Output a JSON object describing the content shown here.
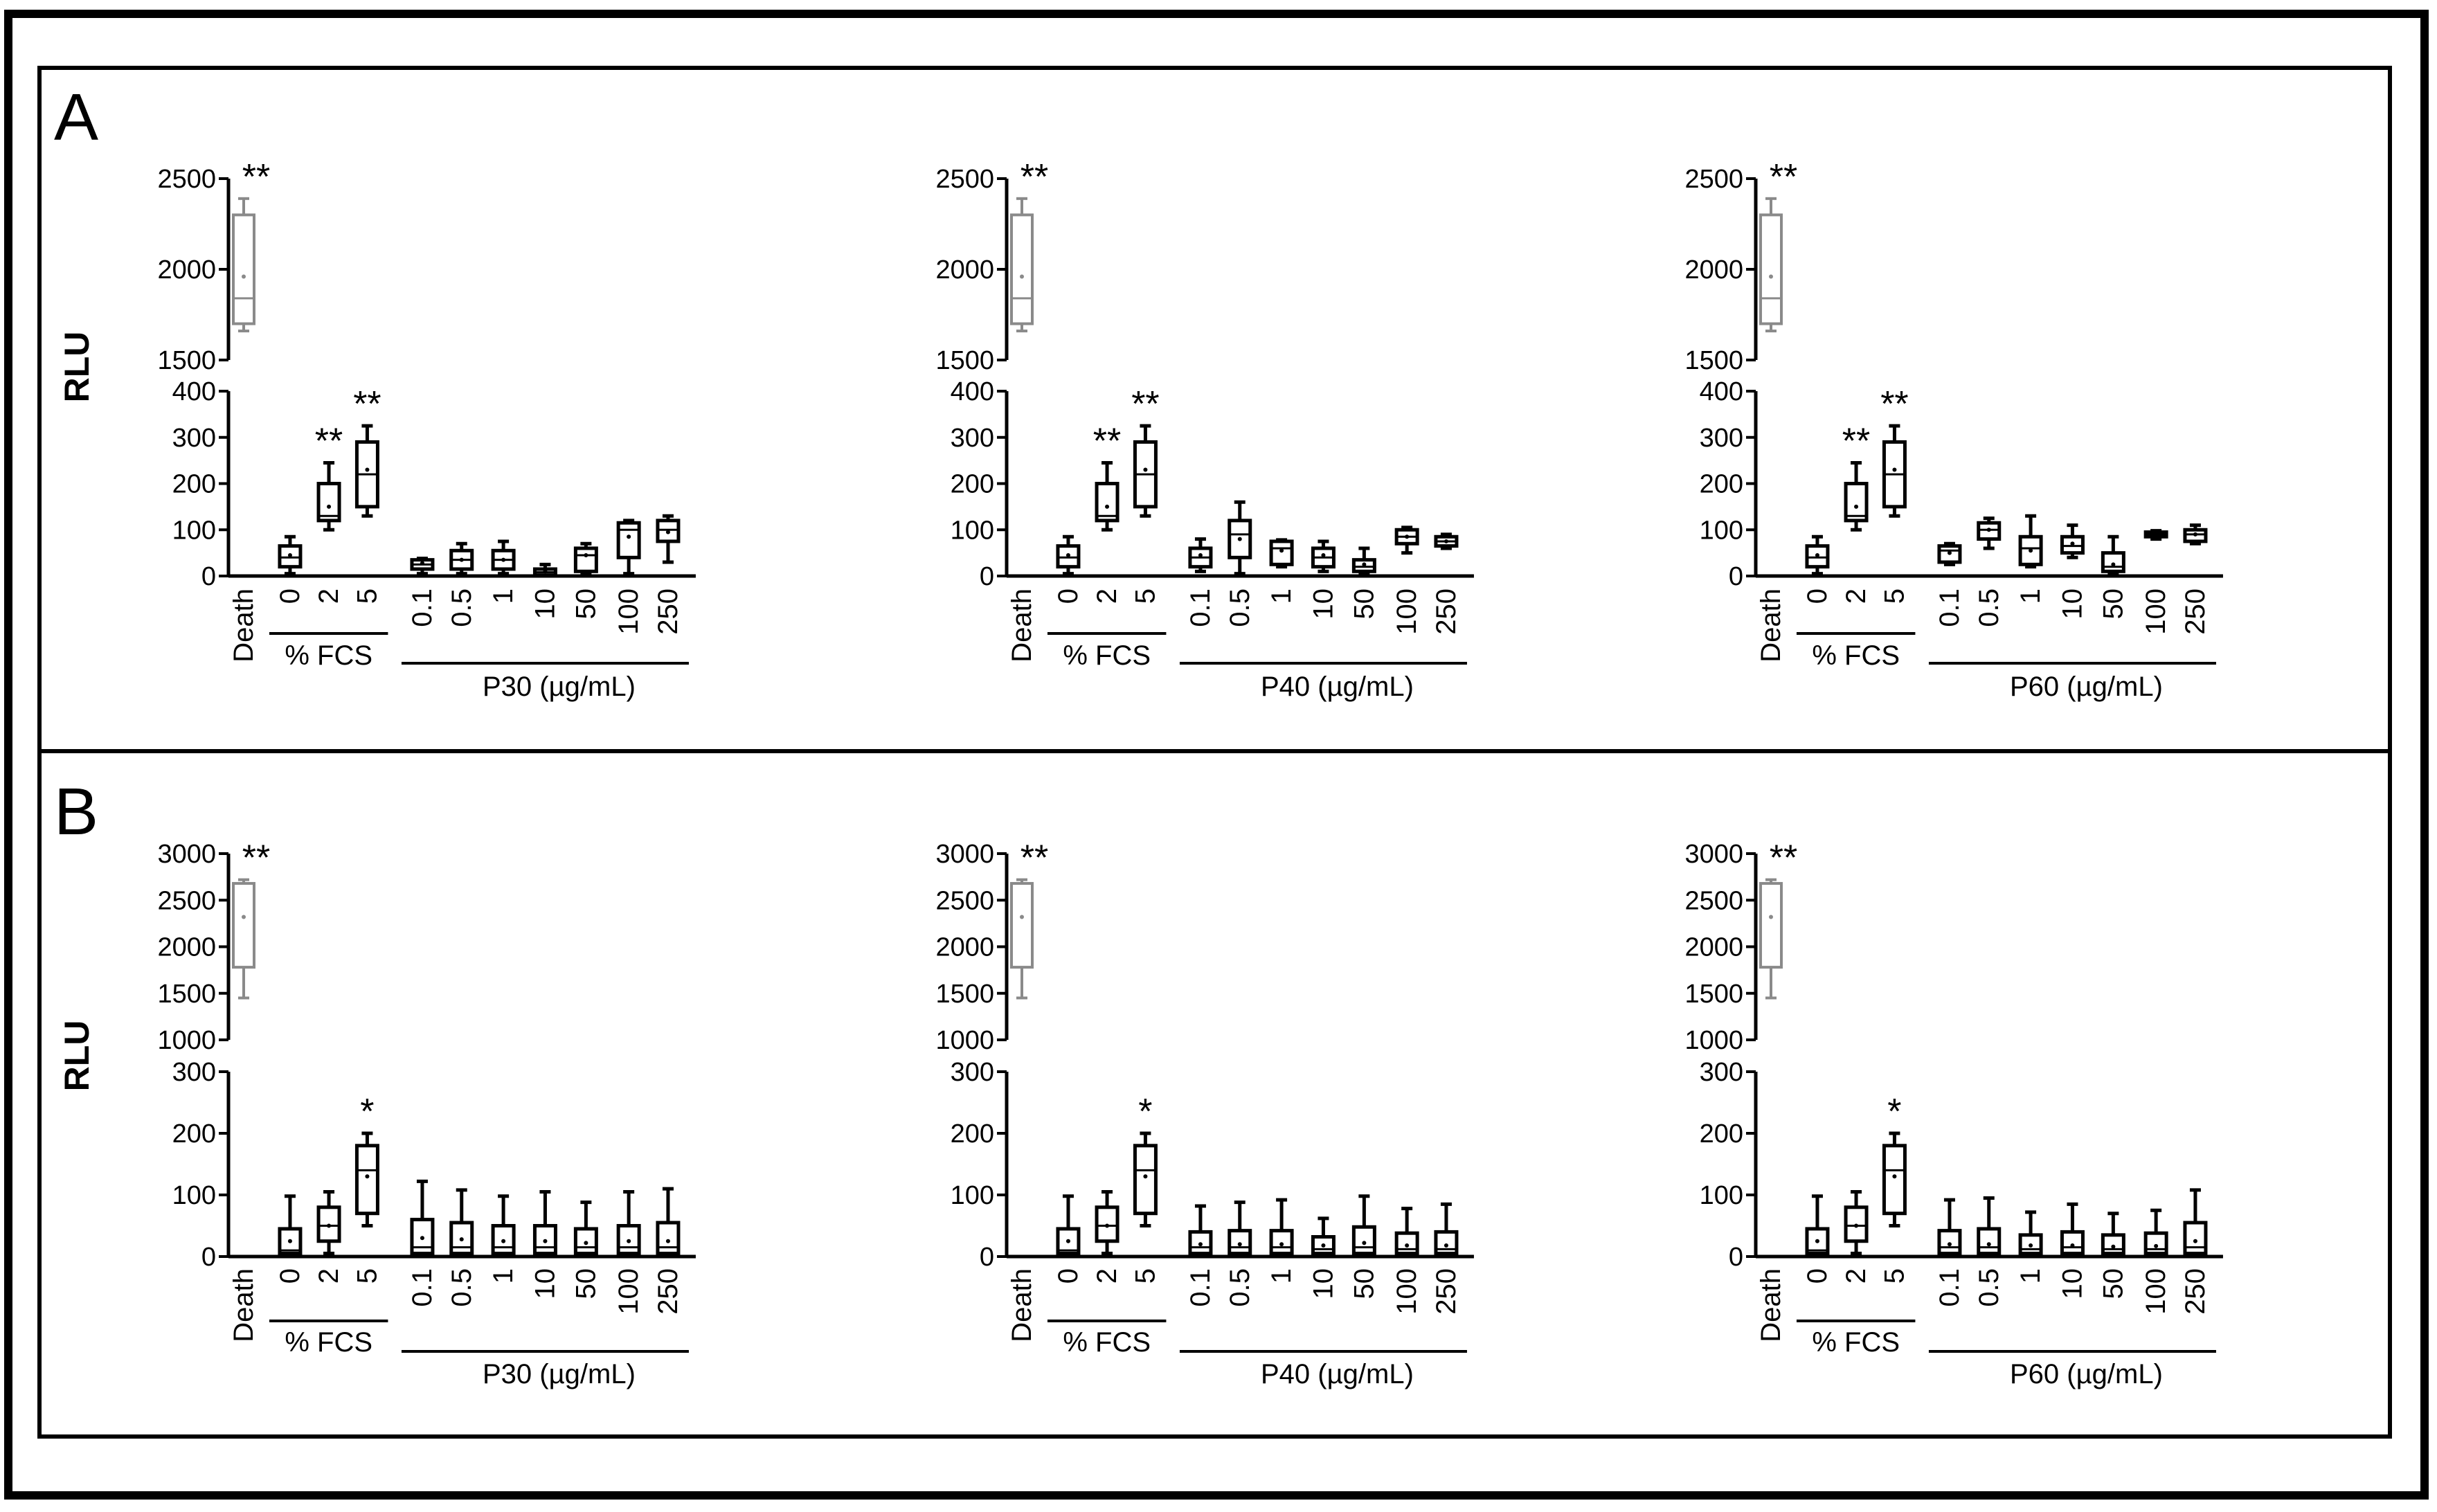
{
  "panel_letters": [
    "A",
    "B"
  ],
  "y_axis_label": "RLU",
  "chart_data": [
    {
      "type": "box",
      "panel": "A",
      "group_label": "P30 (µg/mL)",
      "categories": [
        "Death",
        "0",
        "2",
        "5",
        "0.1",
        "0.5",
        "1",
        "10",
        "50",
        "100",
        "250"
      ],
      "fcs_label": "% FCS",
      "upper_ylim": [
        1500,
        2500
      ],
      "upper_ticks": [
        "1500",
        "2000",
        "2500"
      ],
      "lower_ylim": [
        0,
        400
      ],
      "lower_ticks": [
        "0",
        "100",
        "200",
        "300",
        "400"
      ],
      "boxes": [
        {
          "min": 1660,
          "q1": 1700,
          "median": 1840,
          "q3": 2300,
          "max": 2390,
          "mean": 1960,
          "sig": "**"
        },
        {
          "min": 5,
          "q1": 20,
          "median": 40,
          "q3": 65,
          "max": 85,
          "mean": 45,
          "sig": ""
        },
        {
          "min": 100,
          "q1": 120,
          "median": 130,
          "q3": 200,
          "max": 245,
          "mean": 150,
          "sig": "**"
        },
        {
          "min": 130,
          "q1": 150,
          "median": 220,
          "q3": 290,
          "max": 325,
          "mean": 230,
          "sig": "**"
        },
        {
          "min": 5,
          "q1": 15,
          "median": 25,
          "q3": 35,
          "max": 38,
          "mean": 28,
          "sig": ""
        },
        {
          "min": 5,
          "q1": 15,
          "median": 35,
          "q3": 55,
          "max": 70,
          "mean": 35,
          "sig": ""
        },
        {
          "min": 5,
          "q1": 15,
          "median": 35,
          "q3": 55,
          "max": 75,
          "mean": 35,
          "sig": ""
        },
        {
          "min": 0,
          "q1": 2,
          "median": 8,
          "q3": 15,
          "max": 25,
          "mean": 10,
          "sig": ""
        },
        {
          "min": 5,
          "q1": 10,
          "median": 45,
          "q3": 60,
          "max": 70,
          "mean": 45,
          "sig": ""
        },
        {
          "min": 5,
          "q1": 40,
          "median": 100,
          "q3": 115,
          "max": 120,
          "mean": 85,
          "sig": ""
        },
        {
          "min": 30,
          "q1": 75,
          "median": 100,
          "q3": 120,
          "max": 130,
          "mean": 95,
          "sig": ""
        }
      ]
    },
    {
      "type": "box",
      "panel": "A",
      "group_label": "P40 (µg/mL)",
      "categories": [
        "Death",
        "0",
        "2",
        "5",
        "0.1",
        "0.5",
        "1",
        "10",
        "50",
        "100",
        "250"
      ],
      "fcs_label": "% FCS",
      "upper_ylim": [
        1500,
        2500
      ],
      "upper_ticks": [
        "1500",
        "2000",
        "2500"
      ],
      "lower_ylim": [
        0,
        400
      ],
      "lower_ticks": [
        "0",
        "100",
        "200",
        "300",
        "400"
      ],
      "boxes": [
        {
          "min": 1660,
          "q1": 1700,
          "median": 1840,
          "q3": 2300,
          "max": 2390,
          "mean": 1960,
          "sig": "**"
        },
        {
          "min": 5,
          "q1": 20,
          "median": 40,
          "q3": 65,
          "max": 85,
          "mean": 45,
          "sig": ""
        },
        {
          "min": 100,
          "q1": 120,
          "median": 130,
          "q3": 200,
          "max": 245,
          "mean": 150,
          "sig": "**"
        },
        {
          "min": 130,
          "q1": 150,
          "median": 220,
          "q3": 290,
          "max": 325,
          "mean": 230,
          "sig": "**"
        },
        {
          "min": 10,
          "q1": 20,
          "median": 40,
          "q3": 60,
          "max": 80,
          "mean": 45,
          "sig": ""
        },
        {
          "min": 5,
          "q1": 40,
          "median": 90,
          "q3": 120,
          "max": 160,
          "mean": 80,
          "sig": ""
        },
        {
          "min": 20,
          "q1": 25,
          "median": 60,
          "q3": 75,
          "max": 78,
          "mean": 55,
          "sig": ""
        },
        {
          "min": 10,
          "q1": 20,
          "median": 40,
          "q3": 60,
          "max": 75,
          "mean": 45,
          "sig": ""
        },
        {
          "min": 5,
          "q1": 10,
          "median": 20,
          "q3": 35,
          "max": 60,
          "mean": 25,
          "sig": ""
        },
        {
          "min": 50,
          "q1": 70,
          "median": 85,
          "q3": 100,
          "max": 105,
          "mean": 85,
          "sig": ""
        },
        {
          "min": 60,
          "q1": 65,
          "median": 75,
          "q3": 85,
          "max": 90,
          "mean": 75,
          "sig": ""
        }
      ]
    },
    {
      "type": "box",
      "panel": "A",
      "group_label": "P60 (µg/mL)",
      "categories": [
        "Death",
        "0",
        "2",
        "5",
        "0.1",
        "0.5",
        "1",
        "10",
        "50",
        "100",
        "250"
      ],
      "fcs_label": "% FCS",
      "upper_ylim": [
        1500,
        2500
      ],
      "upper_ticks": [
        "1500",
        "2000",
        "2500"
      ],
      "lower_ylim": [
        0,
        400
      ],
      "lower_ticks": [
        "0",
        "100",
        "200",
        "300",
        "400"
      ],
      "boxes": [
        {
          "min": 1660,
          "q1": 1700,
          "median": 1840,
          "q3": 2300,
          "max": 2390,
          "mean": 1960,
          "sig": "**"
        },
        {
          "min": 5,
          "q1": 20,
          "median": 40,
          "q3": 65,
          "max": 85,
          "mean": 45,
          "sig": ""
        },
        {
          "min": 100,
          "q1": 120,
          "median": 130,
          "q3": 200,
          "max": 245,
          "mean": 150,
          "sig": "**"
        },
        {
          "min": 130,
          "q1": 150,
          "median": 220,
          "q3": 290,
          "max": 325,
          "mean": 230,
          "sig": "**"
        },
        {
          "min": 25,
          "q1": 30,
          "median": 55,
          "q3": 65,
          "max": 70,
          "mean": 50,
          "sig": ""
        },
        {
          "min": 60,
          "q1": 80,
          "median": 100,
          "q3": 115,
          "max": 125,
          "mean": 100,
          "sig": ""
        },
        {
          "min": 20,
          "q1": 25,
          "median": 60,
          "q3": 85,
          "max": 130,
          "mean": 55,
          "sig": ""
        },
        {
          "min": 40,
          "q1": 50,
          "median": 65,
          "q3": 85,
          "max": 110,
          "mean": 70,
          "sig": ""
        },
        {
          "min": 5,
          "q1": 10,
          "median": 20,
          "q3": 50,
          "max": 85,
          "mean": 25,
          "sig": ""
        },
        {
          "min": 80,
          "q1": 85,
          "median": 90,
          "q3": 95,
          "max": 98,
          "mean": 90,
          "sig": ""
        },
        {
          "min": 70,
          "q1": 75,
          "median": 90,
          "q3": 100,
          "max": 110,
          "mean": 90,
          "sig": ""
        }
      ]
    },
    {
      "type": "box",
      "panel": "B",
      "group_label": "P30 (µg/mL)",
      "categories": [
        "Death",
        "0",
        "2",
        "5",
        "0.1",
        "0.5",
        "1",
        "10",
        "50",
        "100",
        "250"
      ],
      "fcs_label": "% FCS",
      "upper_ylim": [
        1000,
        3000
      ],
      "upper_ticks": [
        "1000",
        "1500",
        "2000",
        "2500",
        "3000"
      ],
      "lower_ylim": [
        0,
        300
      ],
      "lower_ticks": [
        "0",
        "100",
        "200",
        "300"
      ],
      "boxes": [
        {
          "min": 1450,
          "q1": 1780,
          "median": 1780,
          "q3": 2680,
          "max": 2720,
          "mean": 2320,
          "sig": "**"
        },
        {
          "min": 0,
          "q1": 5,
          "median": 10,
          "q3": 45,
          "max": 98,
          "mean": 25,
          "sig": ""
        },
        {
          "min": 5,
          "q1": 25,
          "median": 50,
          "q3": 80,
          "max": 105,
          "mean": 50,
          "sig": ""
        },
        {
          "min": 50,
          "q1": 70,
          "median": 140,
          "q3": 180,
          "max": 200,
          "mean": 130,
          "sig": "*"
        },
        {
          "min": 0,
          "q1": 5,
          "median": 15,
          "q3": 60,
          "max": 122,
          "mean": 30,
          "sig": ""
        },
        {
          "min": 0,
          "q1": 5,
          "median": 15,
          "q3": 55,
          "max": 108,
          "mean": 28,
          "sig": ""
        },
        {
          "min": 0,
          "q1": 5,
          "median": 15,
          "q3": 50,
          "max": 98,
          "mean": 25,
          "sig": ""
        },
        {
          "min": 0,
          "q1": 5,
          "median": 15,
          "q3": 50,
          "max": 105,
          "mean": 25,
          "sig": ""
        },
        {
          "min": 0,
          "q1": 5,
          "median": 15,
          "q3": 45,
          "max": 88,
          "mean": 22,
          "sig": ""
        },
        {
          "min": 0,
          "q1": 5,
          "median": 15,
          "q3": 50,
          "max": 105,
          "mean": 25,
          "sig": ""
        },
        {
          "min": 0,
          "q1": 5,
          "median": 15,
          "q3": 55,
          "max": 110,
          "mean": 25,
          "sig": ""
        }
      ]
    },
    {
      "type": "box",
      "panel": "B",
      "group_label": "P40 (µg/mL)",
      "categories": [
        "Death",
        "0",
        "2",
        "5",
        "0.1",
        "0.5",
        "1",
        "10",
        "50",
        "100",
        "250"
      ],
      "fcs_label": "% FCS",
      "upper_ylim": [
        1000,
        3000
      ],
      "upper_ticks": [
        "1000",
        "1500",
        "2000",
        "2500",
        "3000"
      ],
      "lower_ylim": [
        0,
        300
      ],
      "lower_ticks": [
        "0",
        "100",
        "200",
        "300"
      ],
      "boxes": [
        {
          "min": 1450,
          "q1": 1780,
          "median": 1780,
          "q3": 2680,
          "max": 2720,
          "mean": 2320,
          "sig": "**"
        },
        {
          "min": 0,
          "q1": 5,
          "median": 10,
          "q3": 45,
          "max": 98,
          "mean": 25,
          "sig": ""
        },
        {
          "min": 5,
          "q1": 25,
          "median": 50,
          "q3": 80,
          "max": 105,
          "mean": 50,
          "sig": ""
        },
        {
          "min": 50,
          "q1": 70,
          "median": 140,
          "q3": 180,
          "max": 200,
          "mean": 130,
          "sig": "*"
        },
        {
          "min": 0,
          "q1": 5,
          "median": 15,
          "q3": 40,
          "max": 82,
          "mean": 20,
          "sig": ""
        },
        {
          "min": 0,
          "q1": 5,
          "median": 15,
          "q3": 42,
          "max": 88,
          "mean": 20,
          "sig": ""
        },
        {
          "min": 0,
          "q1": 5,
          "median": 15,
          "q3": 42,
          "max": 92,
          "mean": 20,
          "sig": ""
        },
        {
          "min": 0,
          "q1": 5,
          "median": 12,
          "q3": 32,
          "max": 62,
          "mean": 18,
          "sig": ""
        },
        {
          "min": 0,
          "q1": 5,
          "median": 15,
          "q3": 48,
          "max": 98,
          "mean": 22,
          "sig": ""
        },
        {
          "min": 0,
          "q1": 5,
          "median": 12,
          "q3": 38,
          "max": 78,
          "mean": 18,
          "sig": ""
        },
        {
          "min": 0,
          "q1": 5,
          "median": 12,
          "q3": 40,
          "max": 85,
          "mean": 18,
          "sig": ""
        }
      ]
    },
    {
      "type": "box",
      "panel": "B",
      "group_label": "P60 (µg/mL)",
      "categories": [
        "Death",
        "0",
        "2",
        "5",
        "0.1",
        "0.5",
        "1",
        "10",
        "50",
        "100",
        "250"
      ],
      "fcs_label": "% FCS",
      "upper_ylim": [
        1000,
        3000
      ],
      "upper_ticks": [
        "1000",
        "1500",
        "2000",
        "2500",
        "3000"
      ],
      "lower_ylim": [
        0,
        300
      ],
      "lower_ticks": [
        "0",
        "100",
        "200",
        "300"
      ],
      "boxes": [
        {
          "min": 1450,
          "q1": 1780,
          "median": 1780,
          "q3": 2680,
          "max": 2720,
          "mean": 2320,
          "sig": "**"
        },
        {
          "min": 0,
          "q1": 5,
          "median": 10,
          "q3": 45,
          "max": 98,
          "mean": 25,
          "sig": ""
        },
        {
          "min": 5,
          "q1": 25,
          "median": 50,
          "q3": 80,
          "max": 105,
          "mean": 50,
          "sig": ""
        },
        {
          "min": 50,
          "q1": 70,
          "median": 140,
          "q3": 180,
          "max": 200,
          "mean": 130,
          "sig": "*"
        },
        {
          "min": 0,
          "q1": 5,
          "median": 15,
          "q3": 42,
          "max": 92,
          "mean": 20,
          "sig": ""
        },
        {
          "min": 0,
          "q1": 5,
          "median": 15,
          "q3": 45,
          "max": 95,
          "mean": 20,
          "sig": ""
        },
        {
          "min": 0,
          "q1": 5,
          "median": 12,
          "q3": 35,
          "max": 72,
          "mean": 18,
          "sig": ""
        },
        {
          "min": 0,
          "q1": 5,
          "median": 15,
          "q3": 40,
          "max": 85,
          "mean": 18,
          "sig": ""
        },
        {
          "min": 0,
          "q1": 5,
          "median": 12,
          "q3": 35,
          "max": 70,
          "mean": 16,
          "sig": ""
        },
        {
          "min": 0,
          "q1": 5,
          "median": 12,
          "q3": 38,
          "max": 75,
          "mean": 17,
          "sig": ""
        },
        {
          "min": 0,
          "q1": 5,
          "median": 15,
          "q3": 55,
          "max": 108,
          "mean": 25,
          "sig": ""
        }
      ]
    }
  ],
  "colors": {
    "death_box": "#8a8a8a",
    "box": "#000000",
    "frame": "#000000"
  }
}
